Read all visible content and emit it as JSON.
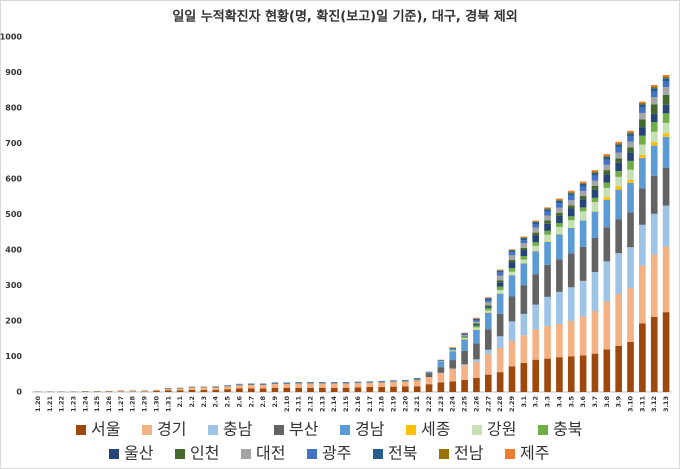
{
  "chart_data": {
    "type": "stacked-bar",
    "title": "일일 누적확진자 현황(명, 확진(보고)일 기준), 대구, 경북 제외",
    "categories": [
      "1.20",
      "1.21",
      "1.22",
      "1.23",
      "1.24",
      "1.25",
      "1.26",
      "1.27",
      "1.28",
      "1.29",
      "1.30",
      "1.31",
      "2.1",
      "2.2",
      "2.3",
      "2.4",
      "2.5",
      "2.6",
      "2.7",
      "2.8",
      "2.9",
      "2.10",
      "2.11",
      "2.12",
      "2.13",
      "2.14",
      "2.15",
      "2.16",
      "2.17",
      "2.18",
      "2.19",
      "2.20",
      "2.21",
      "2.22",
      "2.23",
      "2.24",
      "2.25",
      "2.26",
      "2.27",
      "2.28",
      "2.29",
      "3.1",
      "3.2",
      "3.3",
      "3.4",
      "3.5",
      "3.6",
      "3.7",
      "3.8",
      "3.9",
      "3.10",
      "3.11",
      "3.12",
      "3.13"
    ],
    "ylim": [
      0,
      1000
    ],
    "yticks": [
      0,
      100,
      200,
      300,
      400,
      500,
      600,
      700,
      800,
      900,
      1000
    ],
    "grid": false,
    "series": [
      {
        "name": "서울",
        "color": "#9e480e",
        "values": [
          0,
          0,
          0,
          0,
          1,
          1,
          1,
          1,
          1,
          1,
          3,
          5,
          5,
          6,
          6,
          6,
          8,
          10,
          10,
          10,
          12,
          12,
          12,
          12,
          12,
          12,
          12,
          13,
          14,
          14,
          15,
          16,
          16,
          22,
          27,
          30,
          34,
          40,
          49,
          56,
          72,
          82,
          91,
          94,
          98,
          100,
          103,
          108,
          120,
          130,
          141,
          193,
          212,
          225
        ]
      },
      {
        "name": "경기",
        "color": "#f4b183",
        "values": [
          0,
          0,
          0,
          0,
          0,
          0,
          1,
          2,
          2,
          2,
          2,
          4,
          5,
          7,
          7,
          7,
          8,
          9,
          10,
          10,
          11,
          11,
          12,
          12,
          12,
          12,
          12,
          12,
          12,
          13,
          14,
          14,
          17,
          20,
          27,
          35,
          41,
          45,
          58,
          68,
          72,
          78,
          85,
          92,
          94,
          100,
          110,
          120,
          135,
          146,
          152,
          163,
          175,
          185
        ]
      },
      {
        "name": "충남",
        "color": "#9dc3e6",
        "values": [
          0,
          0,
          0,
          0,
          0,
          0,
          0,
          0,
          0,
          0,
          0,
          0,
          0,
          0,
          0,
          0,
          0,
          0,
          0,
          0,
          0,
          0,
          0,
          0,
          0,
          0,
          0,
          0,
          0,
          0,
          0,
          0,
          0,
          0,
          0,
          1,
          3,
          7,
          12,
          33,
          55,
          60,
          70,
          82,
          90,
          95,
          100,
          110,
          113,
          115,
          115,
          115,
          115,
          115
        ]
      },
      {
        "name": "부산",
        "color": "#636363",
        "values": [
          0,
          0,
          0,
          0,
          0,
          0,
          0,
          0,
          0,
          0,
          0,
          0,
          0,
          0,
          0,
          0,
          0,
          0,
          0,
          0,
          0,
          0,
          0,
          0,
          0,
          0,
          0,
          0,
          0,
          0,
          0,
          0,
          2,
          11,
          16,
          24,
          38,
          45,
          58,
          63,
          70,
          80,
          86,
          90,
          92,
          95,
          96,
          96,
          96,
          96,
          98,
          103,
          107,
          107
        ]
      },
      {
        "name": "경남",
        "color": "#5b9bd5",
        "values": [
          0,
          0,
          0,
          0,
          0,
          0,
          0,
          0,
          0,
          0,
          0,
          0,
          0,
          0,
          0,
          0,
          0,
          0,
          0,
          0,
          0,
          0,
          0,
          0,
          0,
          0,
          0,
          0,
          0,
          0,
          0,
          0,
          0,
          0,
          15,
          25,
          32,
          38,
          46,
          57,
          60,
          62,
          64,
          65,
          70,
          72,
          74,
          74,
          77,
          83,
          83,
          85,
          85,
          87
        ]
      },
      {
        "name": "세종",
        "color": "#ffc000",
        "values": [
          0,
          0,
          0,
          0,
          0,
          0,
          0,
          0,
          0,
          0,
          0,
          0,
          0,
          0,
          0,
          0,
          0,
          0,
          0,
          0,
          0,
          0,
          0,
          0,
          0,
          0,
          0,
          0,
          0,
          0,
          0,
          0,
          0,
          0,
          0,
          0,
          1,
          1,
          1,
          1,
          1,
          1,
          1,
          1,
          1,
          1,
          1,
          1,
          8,
          9,
          9,
          9,
          10,
          10
        ]
      },
      {
        "name": "강원",
        "color": "#c5e0b4",
        "values": [
          0,
          0,
          0,
          0,
          0,
          0,
          0,
          0,
          0,
          0,
          0,
          0,
          0,
          0,
          0,
          0,
          0,
          0,
          0,
          0,
          0,
          0,
          0,
          0,
          0,
          0,
          0,
          0,
          0,
          0,
          0,
          0,
          0,
          0,
          1,
          2,
          3,
          6,
          6,
          9,
          9,
          10,
          15,
          19,
          20,
          21,
          25,
          26,
          26,
          27,
          28,
          29,
          29,
          29
        ]
      },
      {
        "name": "충북",
        "color": "#70ad47",
        "values": [
          0,
          0,
          0,
          0,
          0,
          0,
          0,
          0,
          0,
          0,
          0,
          0,
          0,
          0,
          0,
          0,
          0,
          0,
          0,
          0,
          0,
          0,
          0,
          0,
          0,
          0,
          0,
          0,
          0,
          0,
          0,
          0,
          0,
          0,
          0,
          2,
          3,
          5,
          7,
          10,
          10,
          10,
          10,
          11,
          11,
          11,
          11,
          12,
          15,
          16,
          25,
          25,
          27,
          27
        ]
      },
      {
        "name": "울산",
        "color": "#264478",
        "values": [
          0,
          0,
          0,
          0,
          0,
          0,
          0,
          0,
          0,
          0,
          0,
          0,
          0,
          0,
          0,
          0,
          0,
          0,
          0,
          0,
          0,
          0,
          0,
          0,
          0,
          0,
          0,
          0,
          0,
          0,
          0,
          0,
          0,
          0,
          0,
          0,
          1,
          3,
          4,
          12,
          17,
          17,
          20,
          20,
          20,
          22,
          23,
          23,
          23,
          24,
          24,
          24,
          24,
          24
        ]
      },
      {
        "name": "인천",
        "color": "#43682b",
        "values": [
          1,
          1,
          1,
          1,
          1,
          1,
          1,
          1,
          1,
          1,
          1,
          1,
          1,
          1,
          1,
          1,
          1,
          1,
          1,
          1,
          1,
          1,
          1,
          1,
          1,
          1,
          1,
          1,
          1,
          1,
          1,
          1,
          1,
          1,
          1,
          1,
          1,
          3,
          3,
          6,
          6,
          6,
          7,
          9,
          9,
          9,
          9,
          11,
          12,
          12,
          14,
          22,
          26,
          28
        ]
      },
      {
        "name": "대전",
        "color": "#a5a5a5",
        "values": [
          0,
          0,
          0,
          0,
          0,
          0,
          0,
          0,
          0,
          0,
          0,
          0,
          0,
          0,
          0,
          0,
          0,
          0,
          0,
          0,
          0,
          0,
          0,
          0,
          0,
          0,
          0,
          0,
          0,
          0,
          0,
          0,
          0,
          0,
          0,
          0,
          3,
          5,
          9,
          13,
          13,
          13,
          14,
          14,
          14,
          14,
          14,
          14,
          15,
          16,
          16,
          18,
          21,
          22
        ]
      },
      {
        "name": "광주",
        "color": "#4472c4",
        "values": [
          0,
          0,
          0,
          0,
          0,
          0,
          0,
          0,
          0,
          0,
          0,
          0,
          0,
          0,
          0,
          1,
          1,
          2,
          2,
          2,
          2,
          2,
          2,
          2,
          2,
          2,
          2,
          2,
          2,
          2,
          2,
          2,
          2,
          2,
          2,
          2,
          2,
          3,
          6,
          9,
          9,
          9,
          9,
          11,
          13,
          13,
          13,
          15,
          15,
          15,
          15,
          15,
          15,
          15
        ]
      },
      {
        "name": "전북",
        "color": "#255e91",
        "values": [
          0,
          0,
          0,
          0,
          0,
          0,
          0,
          0,
          0,
          0,
          0,
          1,
          1,
          1,
          1,
          1,
          1,
          1,
          1,
          1,
          1,
          1,
          1,
          1,
          1,
          1,
          1,
          1,
          1,
          1,
          1,
          1,
          1,
          1,
          1,
          2,
          3,
          5,
          5,
          5,
          5,
          6,
          7,
          7,
          7,
          7,
          7,
          7,
          7,
          8,
          8,
          9,
          10,
          10
        ]
      },
      {
        "name": "전남",
        "color": "#997300",
        "values": [
          0,
          0,
          0,
          0,
          0,
          0,
          0,
          0,
          0,
          0,
          0,
          0,
          0,
          0,
          0,
          0,
          0,
          0,
          0,
          0,
          0,
          0,
          0,
          0,
          0,
          0,
          0,
          0,
          0,
          0,
          0,
          0,
          0,
          0,
          0,
          0,
          0,
          1,
          1,
          1,
          1,
          2,
          2,
          3,
          3,
          3,
          3,
          4,
          4,
          4,
          4,
          4,
          5,
          5
        ]
      },
      {
        "name": "제주",
        "color": "#ed7d31",
        "values": [
          0,
          0,
          0,
          0,
          0,
          0,
          0,
          0,
          0,
          0,
          0,
          0,
          0,
          0,
          0,
          0,
          0,
          0,
          0,
          0,
          0,
          0,
          0,
          0,
          0,
          0,
          0,
          0,
          0,
          0,
          0,
          0,
          0,
          0,
          1,
          2,
          2,
          2,
          2,
          2,
          2,
          2,
          2,
          2,
          3,
          4,
          4,
          4,
          4,
          4,
          4,
          4,
          4,
          4
        ]
      }
    ]
  }
}
